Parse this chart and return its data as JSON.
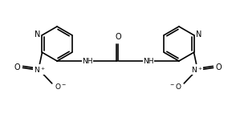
{
  "bg_color": "#ffffff",
  "line_color": "#000000",
  "lw": 1.2,
  "fs": 6.5,
  "fig_width": 2.94,
  "fig_height": 1.52,
  "dpi": 100,
  "xlim": [
    0,
    10
  ],
  "ylim": [
    0,
    5.2
  ]
}
